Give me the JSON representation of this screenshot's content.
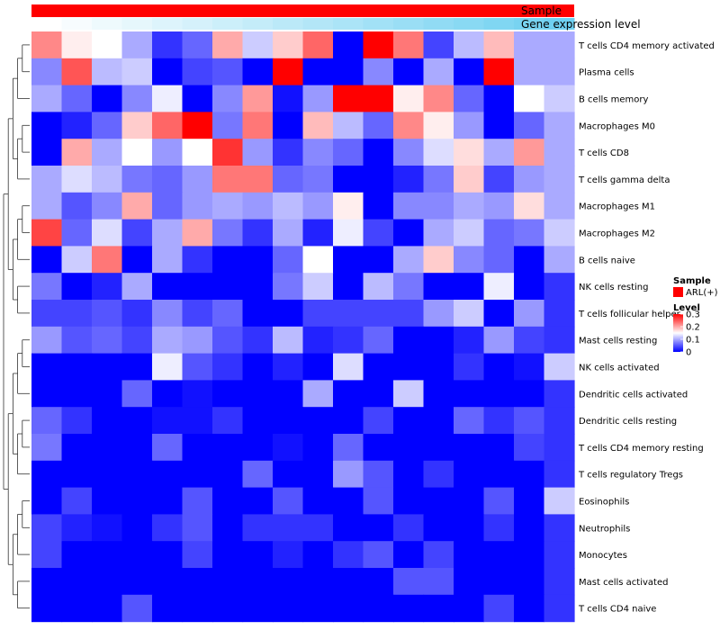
{
  "chart_data": {
    "type": "heatmap",
    "title": "",
    "annotation_labels": {
      "sample": "Sample",
      "gene": "Gene expression level"
    },
    "columns": 18,
    "rows": [
      "T cells CD4 memory activated",
      "Plasma cells",
      "B cells memory",
      "Macrophages M0",
      "T cells CD8",
      "T cells gamma delta",
      "Macrophages M1",
      "Macrophages M2",
      "B cells naive",
      "NK cells resting",
      "T cells follicular helper",
      "Mast cells resting",
      "NK cells activated",
      "Dendritic cells activated",
      "Dendritic cells resting",
      "T cells CD4 memory resting",
      "T cells regulatory  Tregs",
      "Eosinophils",
      "Neutrophils",
      "Monocytes",
      "Mast cells activated",
      "T cells CD4 naive"
    ],
    "values": [
      [
        0.22,
        0.16,
        0.15,
        0.1,
        0.03,
        0.06,
        0.2,
        0.12,
        0.18,
        0.24,
        0.0,
        0.3,
        0.23,
        0.04,
        0.11,
        0.19,
        0.1,
        null
      ],
      [
        0.08,
        0.25,
        0.11,
        0.12,
        0.0,
        0.04,
        0.05,
        0.0,
        0.3,
        0.0,
        0.0,
        0.08,
        0.0,
        0.1,
        0.0,
        0.3,
        0.1,
        null
      ],
      [
        0.1,
        0.06,
        0.0,
        0.08,
        0.14,
        0.0,
        0.08,
        0.21,
        0.01,
        0.09,
        0.3,
        0.3,
        0.16,
        0.22,
        0.06,
        0.0,
        0.15,
        null
      ],
      [
        0.0,
        0.02,
        0.06,
        0.18,
        0.24,
        0.3,
        0.07,
        0.23,
        0.0,
        0.19,
        0.11,
        0.06,
        0.22,
        0.16,
        0.09,
        0.0,
        0.06,
        null
      ],
      [
        0.0,
        0.2,
        0.1,
        0.15,
        0.09,
        0.15,
        0.27,
        0.09,
        0.03,
        0.08,
        0.06,
        0.0,
        0.08,
        0.13,
        0.17,
        0.1,
        0.21,
        null
      ],
      [
        0.1,
        0.13,
        0.11,
        0.07,
        0.06,
        0.09,
        0.23,
        0.23,
        0.06,
        0.07,
        0.0,
        0.0,
        0.02,
        0.07,
        0.18,
        0.04,
        0.09,
        null
      ],
      [
        0.1,
        0.05,
        0.08,
        0.2,
        0.06,
        0.09,
        0.1,
        0.09,
        0.11,
        0.09,
        0.16,
        0.0,
        0.08,
        0.08,
        0.1,
        0.09,
        0.17,
        null
      ],
      [
        0.26,
        0.06,
        0.13,
        0.04,
        0.1,
        0.2,
        0.07,
        0.03,
        0.1,
        0.02,
        0.14,
        0.04,
        0.0,
        0.1,
        0.12,
        0.06,
        0.07,
        null
      ],
      [
        0.0,
        0.12,
        0.23,
        0.0,
        0.1,
        0.03,
        0.0,
        0.0,
        0.06,
        0.15,
        0.0,
        0.0,
        0.1,
        0.18,
        0.08,
        0.06,
        0.0,
        null
      ],
      [
        0.07,
        0.0,
        0.02,
        0.1,
        0.0,
        0.0,
        0.0,
        0.0,
        0.07,
        0.12,
        0.0,
        0.11,
        0.07,
        0.0,
        0.0,
        0.14,
        0.0,
        null
      ],
      [
        0.04,
        0.04,
        0.05,
        0.03,
        0.08,
        0.04,
        0.06,
        0.0,
        0.0,
        0.04,
        0.04,
        0.04,
        0.04,
        0.09,
        0.12,
        0.0,
        0.09,
        null
      ],
      [
        0.09,
        0.05,
        0.06,
        0.04,
        0.1,
        0.09,
        0.05,
        0.03,
        0.11,
        0.02,
        0.03,
        0.06,
        0.0,
        0.0,
        0.02,
        0.09,
        0.04,
        null
      ],
      [
        0.0,
        0.0,
        0.0,
        0.0,
        0.14,
        0.05,
        0.03,
        0.0,
        0.02,
        0.0,
        0.13,
        0.0,
        0.0,
        0.0,
        0.03,
        0.0,
        0.01,
        null
      ],
      [
        0.0,
        0.0,
        0.0,
        0.06,
        0.0,
        0.01,
        0.0,
        0.0,
        0.0,
        0.1,
        0.0,
        0.0,
        0.12,
        0.0,
        0.0,
        0.0,
        0.0,
        null
      ],
      [
        0.06,
        0.03,
        0.0,
        0.0,
        0.01,
        0.01,
        0.03,
        0.0,
        0.0,
        0.0,
        0.0,
        0.04,
        0.0,
        0.0,
        0.06,
        0.03,
        0.05,
        null
      ],
      [
        0.07,
        0.0,
        0.0,
        0.0,
        0.06,
        0.0,
        0.0,
        0.0,
        0.01,
        0.0,
        0.06,
        0.0,
        0.0,
        0.0,
        0.0,
        0.0,
        0.04,
        null
      ],
      [
        0.0,
        0.0,
        0.0,
        0.0,
        0.0,
        0.0,
        0.0,
        0.06,
        0.0,
        0.0,
        0.09,
        0.05,
        0.0,
        0.03,
        0.0,
        0.0,
        0.0,
        null
      ],
      [
        0.0,
        0.04,
        0.0,
        0.0,
        0.0,
        0.05,
        0.0,
        0.0,
        0.05,
        0.0,
        0.0,
        0.05,
        0.0,
        0.0,
        0.0,
        0.05,
        0.0,
        null
      ],
      [
        0.04,
        0.02,
        0.01,
        0.0,
        0.03,
        0.05,
        0.0,
        0.03,
        0.03,
        0.03,
        0.0,
        0.0,
        0.03,
        0.0,
        0.0,
        0.03,
        0.0,
        null
      ],
      [
        0.04,
        0.0,
        0.0,
        0.0,
        0.0,
        0.04,
        0.0,
        0.0,
        0.02,
        0.0,
        0.03,
        0.05,
        0.0,
        0.04,
        0.0,
        0.0,
        0.0,
        null
      ],
      [
        0.0,
        0.0,
        0.0,
        0.0,
        0.0,
        0.0,
        0.0,
        0.0,
        0.0,
        0.0,
        0.0,
        0.0,
        0.05,
        0.05,
        0.0,
        0.0,
        0.0,
        null
      ],
      [
        0.0,
        0.0,
        0.0,
        0.05,
        0.0,
        0.0,
        0.0,
        0.0,
        0.0,
        0.0,
        0.0,
        0.0,
        0.0,
        0.0,
        0.0,
        0.04,
        0.0,
        null
      ]
    ],
    "sample_group": "ARL(+)",
    "gene_expression_relative": [
      0.0,
      0.05,
      0.1,
      0.15,
      0.2,
      0.25,
      0.3,
      0.35,
      0.4,
      0.45,
      0.5,
      0.55,
      0.6,
      0.65,
      0.7,
      0.75,
      0.8,
      0.85
    ],
    "color_scale": {
      "min": 0,
      "max": 0.3,
      "low": "#0000ff",
      "mid": "#ffffff",
      "high": "#ff0000"
    },
    "legend": {
      "sample_title": "Sample",
      "sample_entry": "ARL(+)",
      "sample_color": "#ff0000",
      "level_title": "Level",
      "ticks": [
        "0.3",
        "0.2",
        "0.1",
        "0"
      ],
      "tick_values": [
        0.3,
        0.2,
        0.1,
        0
      ]
    },
    "annotation_colors": {
      "sample": "#ff0000",
      "gene_low": "#ffffff",
      "gene_high": "#56c8ee"
    },
    "dendrogram": "hierarchical row clustering",
    "legend_position": "right"
  }
}
